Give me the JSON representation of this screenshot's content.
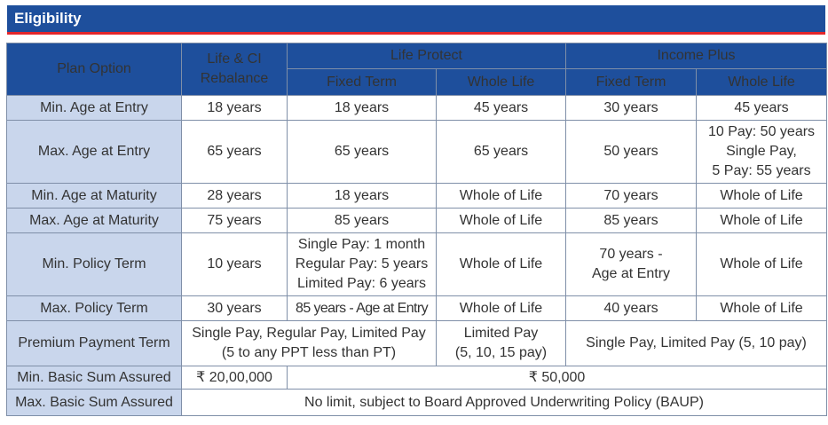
{
  "title": "Eligibility",
  "headers": {
    "plan_option": "Plan Option",
    "life_ci": "Life & CI Rebalance",
    "life_protect": "Life Protect",
    "income_plus": "Income Plus",
    "fixed_term": "Fixed Term",
    "whole_life": "Whole Life"
  },
  "rows": {
    "min_age_entry": {
      "label": "Min. Age at Entry",
      "life_ci": "18 years",
      "lp_fixed": "18 years",
      "lp_whole": "45 years",
      "ip_fixed": "30 years",
      "ip_whole": "45 years"
    },
    "max_age_entry": {
      "label": "Max. Age at Entry",
      "life_ci": "65 years",
      "lp_fixed": "65 years",
      "lp_whole": "65 years",
      "ip_fixed": "50 years",
      "ip_whole_lines": [
        "10 Pay: 50 years",
        "Single Pay,",
        "5 Pay: 55 years"
      ]
    },
    "min_age_maturity": {
      "label": "Min. Age at Maturity",
      "life_ci": "28 years",
      "lp_fixed": "18 years",
      "lp_whole": "Whole of Life",
      "ip_fixed": "70 years",
      "ip_whole": "Whole of Life"
    },
    "max_age_maturity": {
      "label": "Max. Age at Maturity",
      "life_ci": "75 years",
      "lp_fixed": "85 years",
      "lp_whole": "Whole of Life",
      "ip_fixed": "85 years",
      "ip_whole": "Whole of Life"
    },
    "min_policy_term": {
      "label": "Min. Policy Term",
      "life_ci": "10 years",
      "lp_fixed_lines": [
        "Single Pay: 1 month",
        "Regular Pay: 5 years",
        "Limited Pay: 6 years"
      ],
      "lp_whole": "Whole of Life",
      "ip_fixed_lines": [
        "70 years -",
        "Age at Entry"
      ],
      "ip_whole": "Whole of Life"
    },
    "max_policy_term": {
      "label": "Max. Policy Term",
      "life_ci": "30 years",
      "lp_fixed": "85 years - Age at Entry",
      "lp_whole": "Whole of Life",
      "ip_fixed": "40 years",
      "ip_whole": "Whole of Life"
    },
    "ppt": {
      "label": "Premium Payment Term",
      "combined_lines": [
        "Single Pay, Regular Pay, Limited Pay",
        "(5 to any PPT less than PT)"
      ],
      "lp_whole_lines": [
        "Limited Pay",
        "(5, 10, 15 pay)"
      ],
      "income_plus": "Single Pay, Limited Pay (5, 10 pay)"
    },
    "min_sum": {
      "label": "Min. Basic Sum Assured",
      "life_ci": "₹ 20,00,000",
      "others": "₹ 50,000"
    },
    "max_sum": {
      "label": "Max. Basic Sum Assured",
      "all": "No limit, subject to Board Approved Underwriting Policy (BAUP)"
    }
  }
}
